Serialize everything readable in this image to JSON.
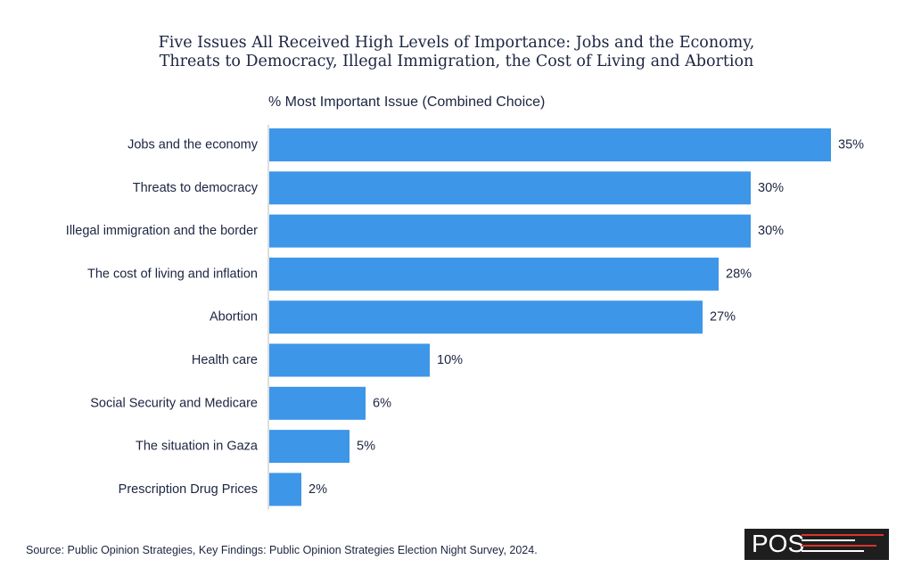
{
  "title": {
    "line1": "Five Issues All Received High Levels of Importance: Jobs and the Economy,",
    "line2": "Threats to Democracy, Illegal Immigration, the Cost of Living and Abortion"
  },
  "chart_data": {
    "type": "bar",
    "orientation": "horizontal",
    "title": "Five Issues All Received High Levels of Importance: Jobs and the Economy, Threats to Democracy, Illegal Immigration, the Cost of Living and Abortion",
    "subtitle": "% Most Important Issue (Combined Choice)",
    "categories": [
      "Jobs and the economy",
      "Threats to democracy",
      "Illegal immigration and the border",
      "The cost of living and inflation",
      "Abortion",
      "Health care",
      "Social Security and Medicare",
      "The situation in Gaza",
      "Prescription Drug Prices"
    ],
    "values": [
      35,
      30,
      30,
      28,
      27,
      10,
      6,
      5,
      2
    ],
    "value_labels": [
      "35%",
      "30%",
      "30%",
      "28%",
      "27%",
      "10%",
      "6%",
      "5%",
      "2%"
    ],
    "xlim": [
      0,
      35
    ],
    "xlabel": "",
    "ylabel": "",
    "grid": false,
    "bar_color": "#3d96e8",
    "axis_color": "#bdbdbd"
  },
  "source": "Source: Public Opinion Strategies, Key Findings: Public Opinion Strategies Election Night Survey, 2024.",
  "logo": {
    "text": "POS",
    "background": "#1e1e1e",
    "line_colors": [
      "#d9342b",
      "#ffffff"
    ]
  }
}
